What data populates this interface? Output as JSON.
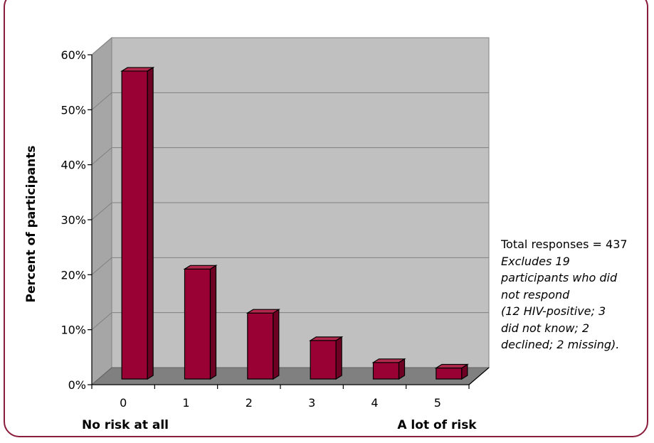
{
  "chart_data": {
    "type": "bar",
    "title": "",
    "xlabel": "",
    "ylabel": "Percent of participants",
    "categories": [
      "0",
      "1",
      "2",
      "3",
      "4",
      "5"
    ],
    "values": [
      56,
      20,
      12,
      7,
      3,
      2
    ],
    "ylim": [
      0,
      60
    ],
    "yticks": [
      "0%",
      "10%",
      "20%",
      "30%",
      "40%",
      "50%",
      "60%"
    ],
    "x_endpoint_labels": {
      "left": "No risk at all",
      "right": "A lot of risk"
    },
    "grid": true,
    "bar_color": "#990033",
    "wall_color": "#c0c0c0",
    "floor_color": "#808080"
  },
  "notes": {
    "total": "Total responses = 437",
    "detail_lines": [
      "Excludes 19",
      "participants who did",
      "not respond",
      "(12 HIV-positive; 3",
      "did not know; 2",
      "declined; 2 missing)."
    ]
  }
}
